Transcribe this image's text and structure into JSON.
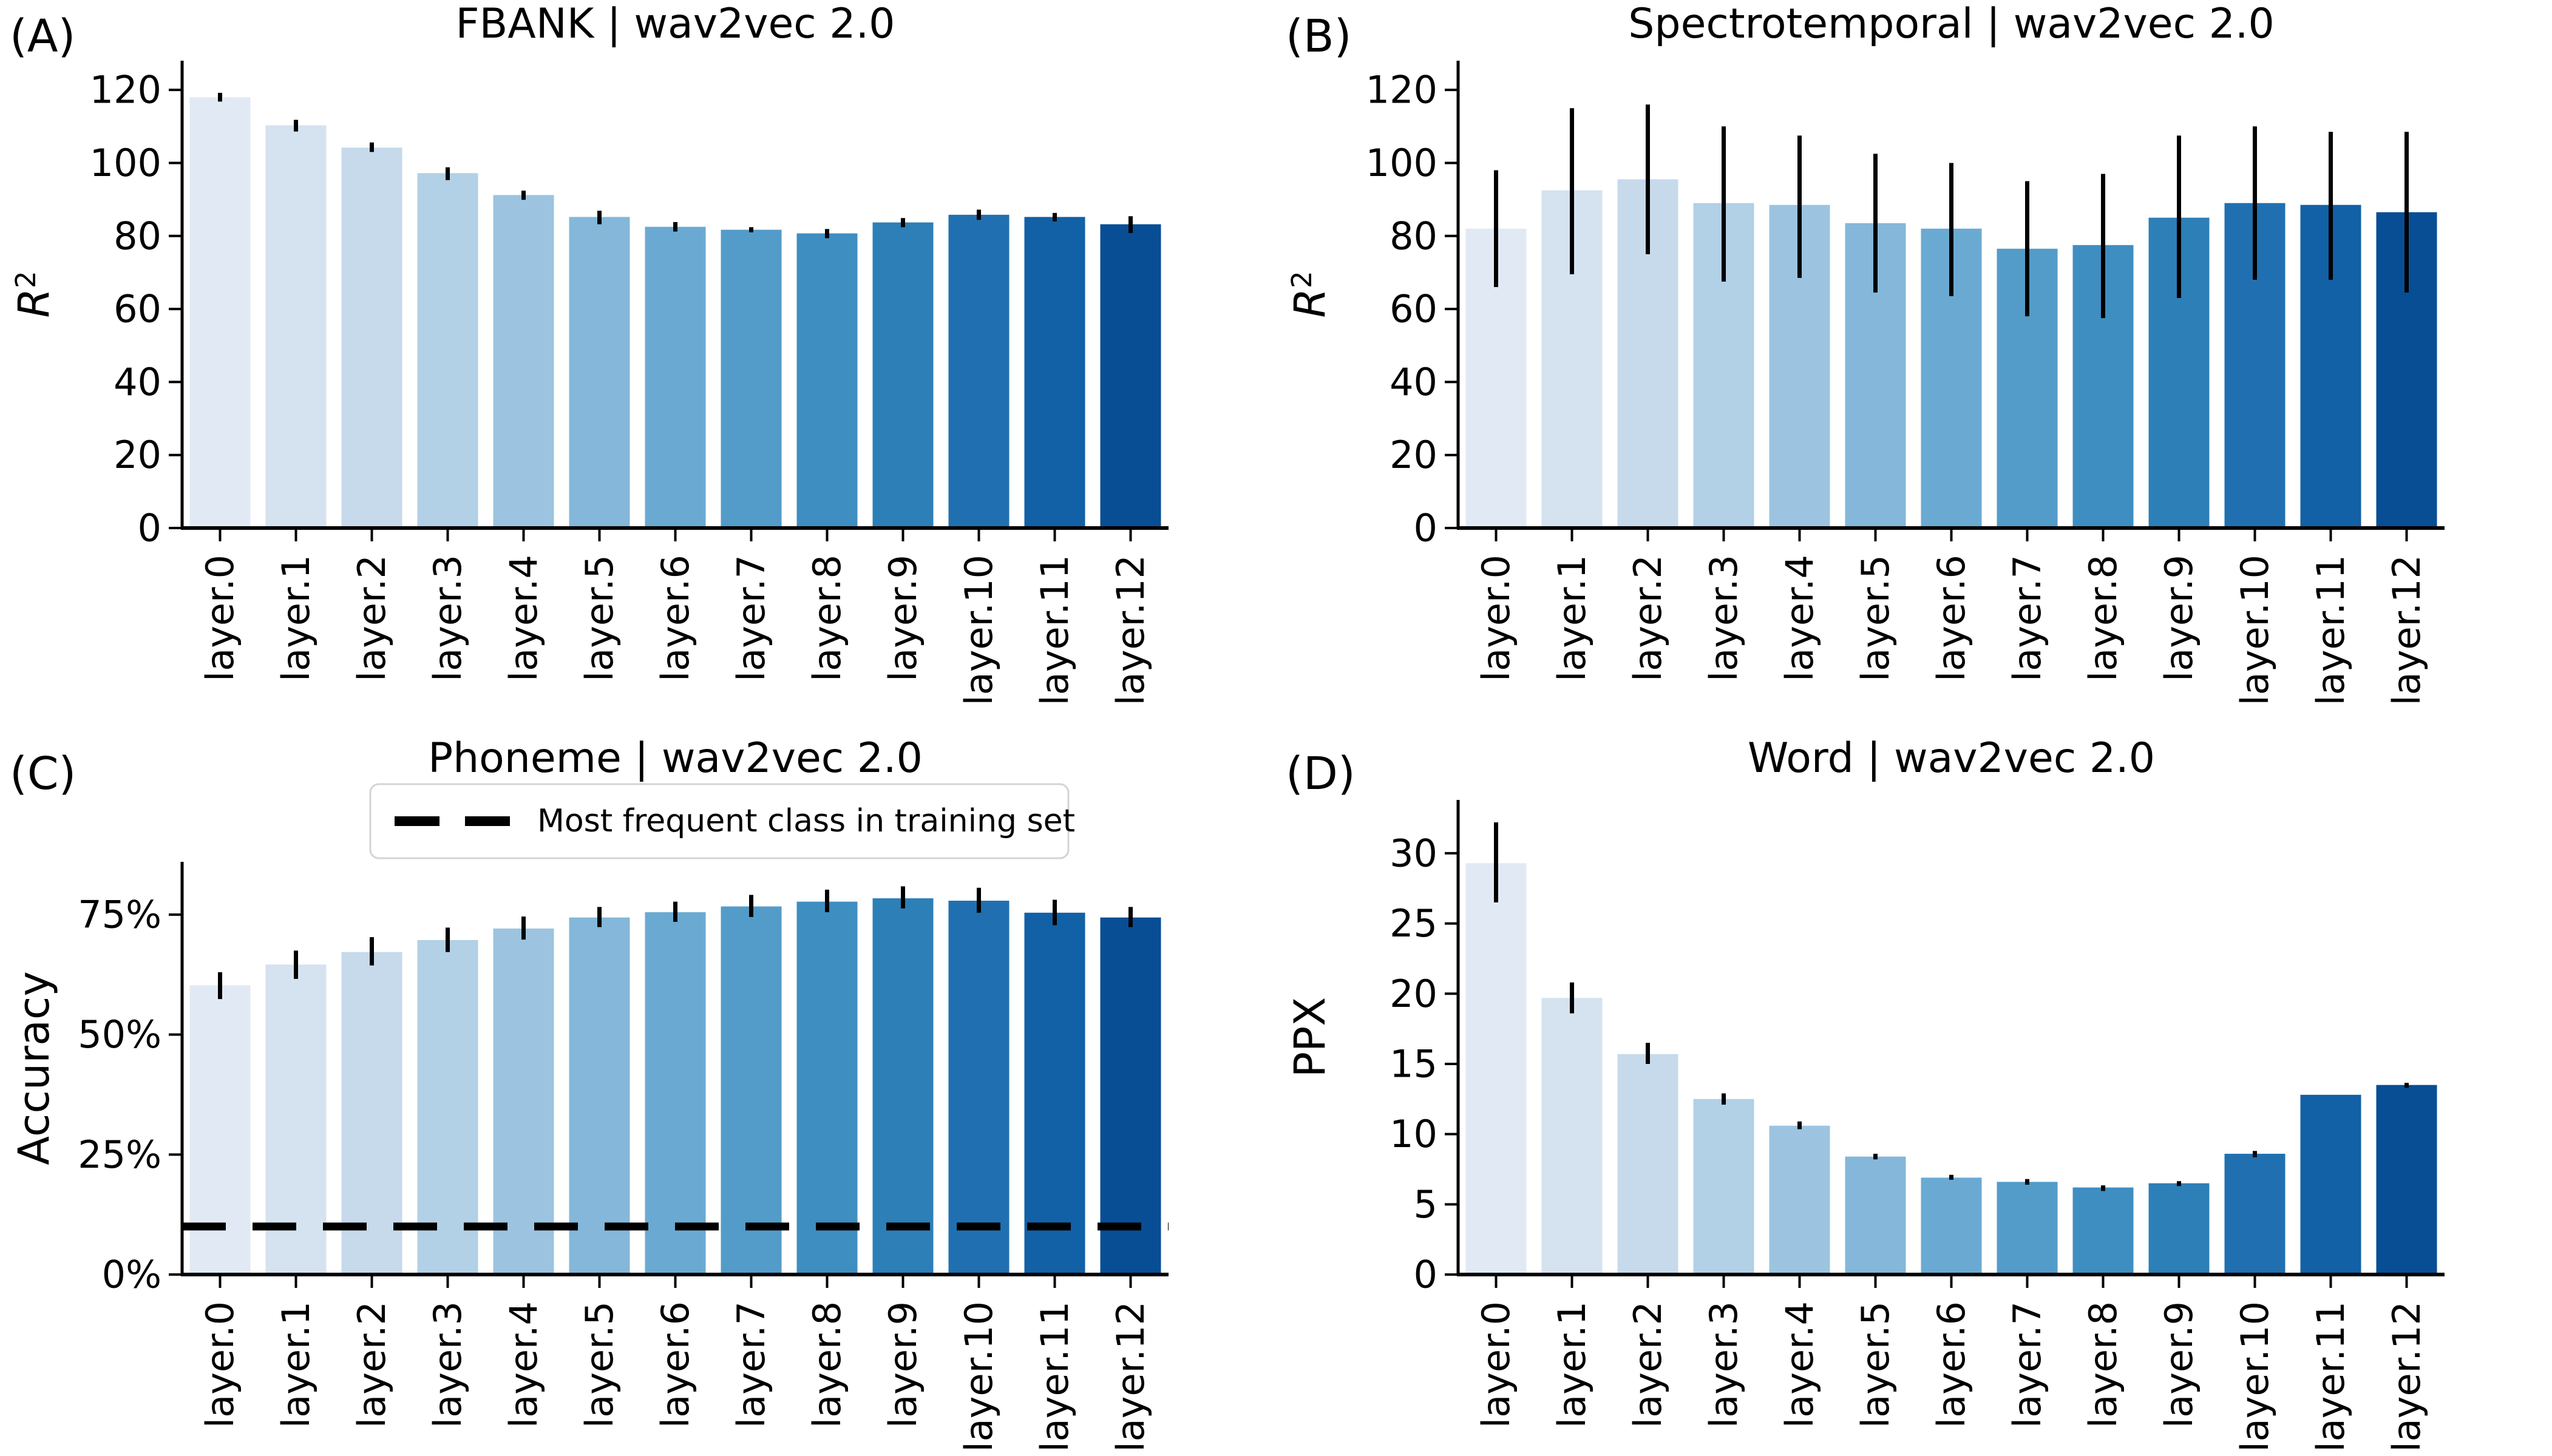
{
  "figure": {
    "background": "#ffffff",
    "axis_color": "#000000",
    "error_bar_color": "#000000",
    "palette_name": "blues-13",
    "palette": [
      "#e1eaf4",
      "#d5e2f0",
      "#c6daeb",
      "#b2d0e6",
      "#9cc4e0",
      "#84b7d9",
      "#6aaad2",
      "#539cc9",
      "#3f8ec1",
      "#2d7fb8",
      "#2070b1",
      "#1260a6",
      "#084e95"
    ]
  },
  "chart_data": [
    {
      "id": "A",
      "panel_label": "(A)",
      "type": "bar",
      "title": "FBANK | wav2vec 2.0",
      "ylabel": {
        "base": "R",
        "sup": "2",
        "italic": true
      },
      "categories": [
        "layer.0",
        "layer.1",
        "layer.2",
        "layer.3",
        "layer.4",
        "layer.5",
        "layer.6",
        "layer.7",
        "layer.8",
        "layer.9",
        "layer.10",
        "layer.11",
        "layer.12"
      ],
      "values": [
        118.0,
        110.3,
        104.2,
        97.2,
        91.2,
        85.2,
        82.5,
        81.7,
        80.7,
        83.7,
        85.8,
        85.2,
        83.2
      ],
      "error_low": [
        116.8,
        108.6,
        103.0,
        95.3,
        89.9,
        83.2,
        81.2,
        81.0,
        79.4,
        82.4,
        84.4,
        84.0,
        80.8
      ],
      "error_high": [
        119.2,
        111.8,
        105.6,
        98.8,
        92.4,
        86.9,
        83.8,
        82.4,
        81.9,
        84.9,
        87.2,
        86.3,
        85.4
      ],
      "yticks": [
        0,
        20,
        40,
        60,
        80,
        100,
        120
      ],
      "ytick_labels": [
        "0",
        "20",
        "40",
        "60",
        "80",
        "100",
        "120"
      ],
      "ylim": [
        0,
        128
      ],
      "grid": false,
      "bar_colors": "blues-13",
      "xtick_rotation": 90
    },
    {
      "id": "B",
      "panel_label": "(B)",
      "type": "bar",
      "title": "Spectrotemporal | wav2vec 2.0",
      "ylabel": {
        "base": "R",
        "sup": "2",
        "italic": true
      },
      "categories": [
        "layer.0",
        "layer.1",
        "layer.2",
        "layer.3",
        "layer.4",
        "layer.5",
        "layer.6",
        "layer.7",
        "layer.8",
        "layer.9",
        "layer.10",
        "layer.11",
        "layer.12"
      ],
      "values": [
        82.0,
        92.5,
        95.5,
        89.0,
        88.5,
        83.5,
        82.0,
        76.5,
        77.5,
        85.0,
        89.0,
        88.5,
        86.5
      ],
      "error_low": [
        66.0,
        69.5,
        75.0,
        67.5,
        68.5,
        64.5,
        63.5,
        58.0,
        57.5,
        63.0,
        68.0,
        68.0,
        64.5
      ],
      "error_high": [
        98.0,
        115.0,
        116.0,
        110.0,
        107.5,
        102.5,
        100.0,
        95.0,
        97.0,
        107.5,
        110.0,
        108.5,
        108.5
      ],
      "yticks": [
        0,
        20,
        40,
        60,
        80,
        100,
        120
      ],
      "ytick_labels": [
        "0",
        "20",
        "40",
        "60",
        "80",
        "100",
        "120"
      ],
      "ylim": [
        0,
        128
      ],
      "grid": false,
      "bar_colors": "blues-13",
      "xtick_rotation": 90
    },
    {
      "id": "C",
      "panel_label": "(C)",
      "type": "bar",
      "title": "Phoneme | wav2vec 2.0",
      "ylabel": {
        "base": "Accuracy"
      },
      "categories": [
        "layer.0",
        "layer.1",
        "layer.2",
        "layer.3",
        "layer.4",
        "layer.5",
        "layer.6",
        "layer.7",
        "layer.8",
        "layer.9",
        "layer.10",
        "layer.11",
        "layer.12"
      ],
      "values": [
        60.3,
        64.6,
        67.2,
        69.7,
        72.1,
        74.4,
        75.5,
        76.7,
        77.7,
        78.4,
        77.9,
        75.4,
        74.4
      ],
      "error_low": [
        57.4,
        61.6,
        64.4,
        67.2,
        69.8,
        72.4,
        73.5,
        74.5,
        75.5,
        76.3,
        75.4,
        72.8,
        72.4
      ],
      "error_high": [
        63.0,
        67.5,
        70.3,
        72.3,
        74.6,
        76.6,
        77.7,
        79.1,
        80.2,
        80.9,
        80.6,
        78.1,
        76.6
      ],
      "yticks": [
        0,
        25,
        50,
        75
      ],
      "ytick_labels": [
        "0%",
        "25%",
        "50%",
        "75%"
      ],
      "ylim": [
        0,
        86
      ],
      "grid": false,
      "bar_colors": "blues-13",
      "xtick_rotation": 90,
      "reference_line": {
        "value": 10,
        "style": "dashed",
        "color": "#000000"
      },
      "legend": {
        "label": "Most frequent class in training set",
        "line_style": "dashed",
        "line_color": "#000000",
        "position": "top-center"
      }
    },
    {
      "id": "D",
      "panel_label": "(D)",
      "type": "bar",
      "title": "Word | wav2vec 2.0",
      "ylabel": {
        "base": "PPX"
      },
      "categories": [
        "layer.0",
        "layer.1",
        "layer.2",
        "layer.3",
        "layer.4",
        "layer.5",
        "layer.6",
        "layer.7",
        "layer.8",
        "layer.9",
        "layer.10",
        "layer.11",
        "layer.12"
      ],
      "values": [
        29.3,
        19.7,
        15.7,
        12.5,
        10.6,
        8.4,
        6.9,
        6.6,
        6.2,
        6.5,
        8.6,
        12.8,
        13.5
      ],
      "error_low": [
        26.5,
        18.6,
        15.0,
        12.1,
        10.35,
        8.2,
        6.75,
        6.4,
        5.95,
        6.3,
        8.35,
        12.8,
        13.3
      ],
      "error_high": [
        32.2,
        20.8,
        16.5,
        12.9,
        10.9,
        8.6,
        7.1,
        6.8,
        6.35,
        6.65,
        8.8,
        12.8,
        13.65
      ],
      "yticks": [
        0,
        5,
        10,
        15,
        20,
        25,
        30
      ],
      "ytick_labels": [
        "0",
        "5",
        "10",
        "15",
        "20",
        "25",
        "30"
      ],
      "ylim": [
        0,
        33.8
      ],
      "grid": false,
      "bar_colors": "blues-13",
      "xtick_rotation": 90
    }
  ]
}
